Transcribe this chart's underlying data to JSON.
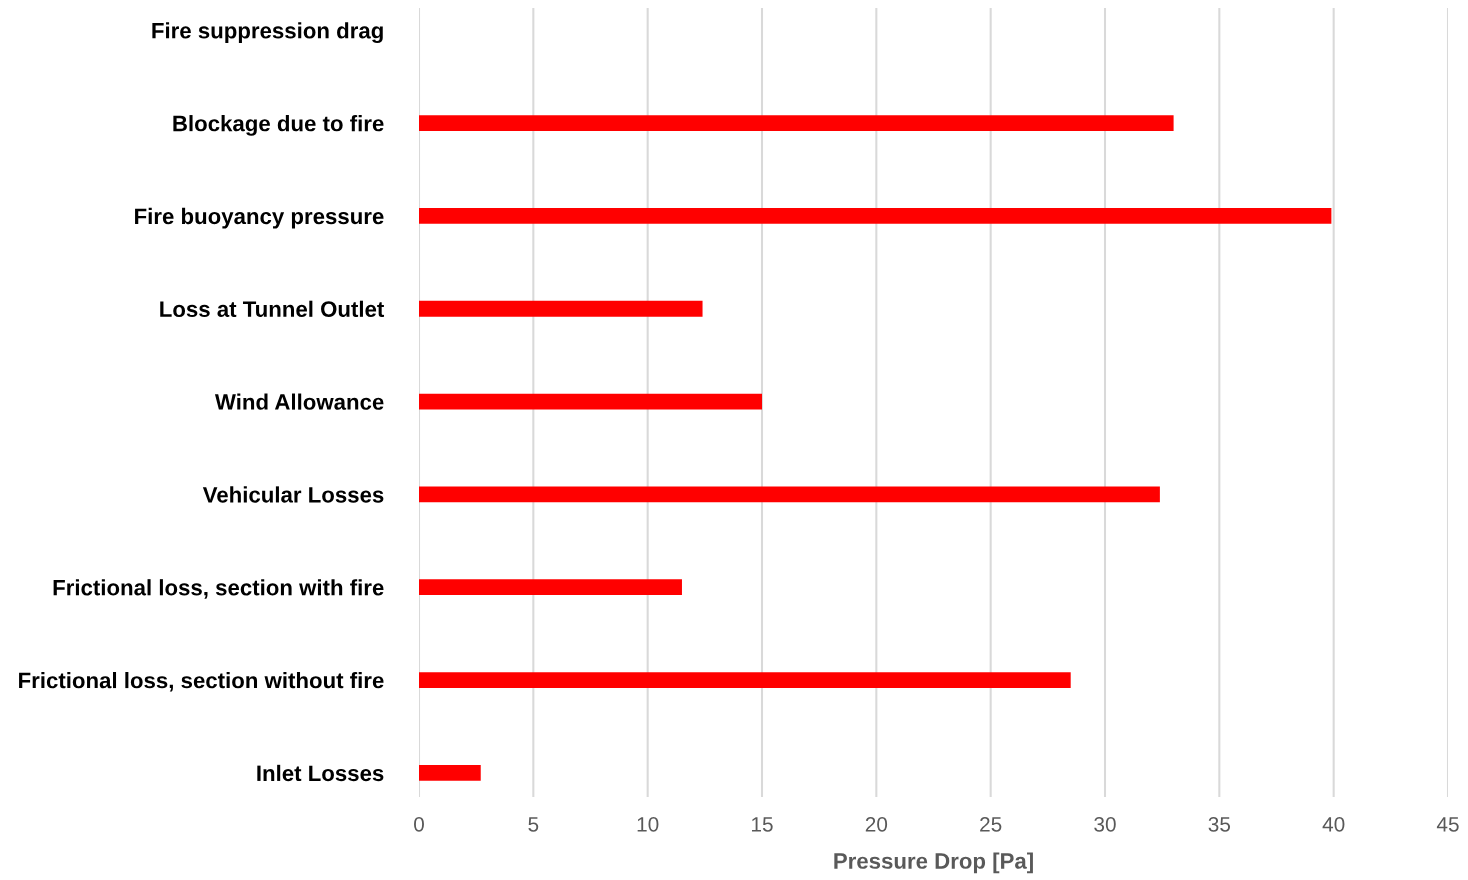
{
  "chart_data": {
    "type": "bar",
    "orientation": "horizontal",
    "xlabel": "Pressure Drop [Pa]",
    "categories": [
      "Fire suppression drag",
      "Blockage due to fire",
      "Fire buoyancy pressure",
      "Loss at Tunnel Outlet",
      "Wind Allowance",
      "Vehicular Losses",
      "Frictional loss, section with fire",
      "Frictional loss, section without fire",
      "Inlet Losses"
    ],
    "values": [
      0,
      33,
      39.9,
      12.4,
      15,
      32.4,
      11.5,
      28.5,
      2.7
    ],
    "color": "#ff0000",
    "xlim": [
      0,
      45
    ],
    "xticks": [
      0,
      5,
      10,
      15,
      20,
      25,
      30,
      35,
      40,
      45
    ],
    "grid": "x",
    "legend": false
  }
}
